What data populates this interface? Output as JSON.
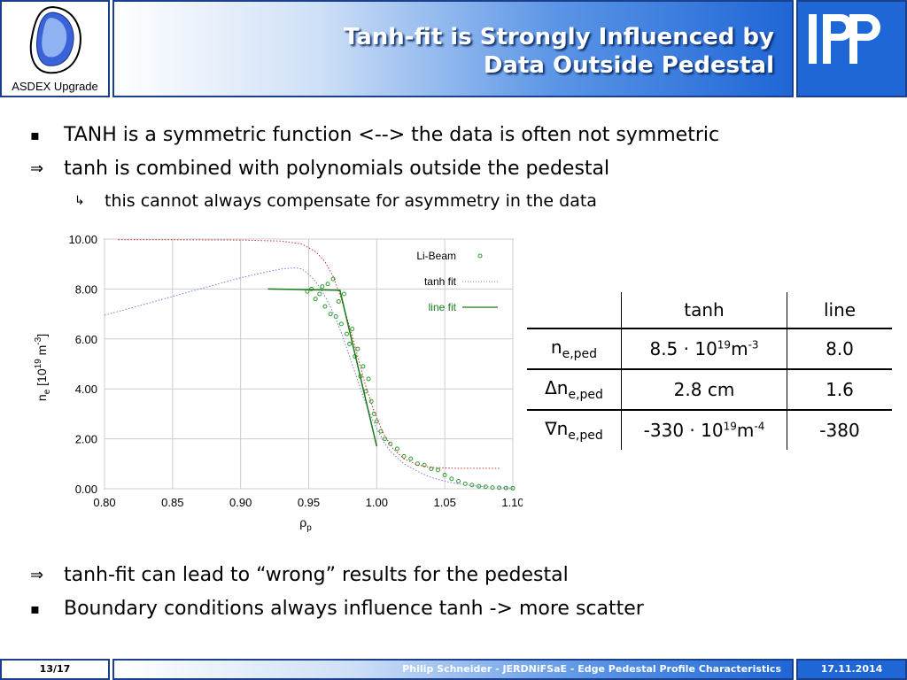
{
  "header": {
    "logo_label": "ASDEX Upgrade",
    "title_line1": "Tanh-fit is Strongly Influenced by",
    "title_line2": "Data Outside Pedestal",
    "institute_logo": "IPP"
  },
  "bullets": [
    {
      "symbol": "▪",
      "text": "TANH is a symmetric function <--> the data is often not symmetric"
    },
    {
      "symbol": "⇒",
      "text": "tanh is combined with polynomials outside the pedestal"
    },
    {
      "symbol": "↳",
      "text": "this cannot always compensate for asymmetry in the data"
    },
    {
      "symbol": "⇒",
      "text": "tanh-fit can lead to “wrong” results for the pedestal"
    },
    {
      "symbol": "▪",
      "text": "Boundary conditions always influence tanh -> more scatter"
    }
  ],
  "table": {
    "header": [
      "",
      "tanh",
      "line"
    ],
    "rows": [
      {
        "label": "n",
        "label_sub": "e,ped",
        "tanh_main": "8.5 · 10",
        "tanh_sup": "19",
        "tanh_unit": "m",
        "tanh_unit_sup": "-3",
        "line": "8.0"
      },
      {
        "label": "Δn",
        "label_sub": "e,ped",
        "tanh_main": "2.8 cm",
        "tanh_sup": "",
        "tanh_unit": "",
        "tanh_unit_sup": "",
        "line": "1.6"
      },
      {
        "label": "∇n",
        "label_sub": "e,ped",
        "tanh_main": "-330 · 10",
        "tanh_sup": "19",
        "tanh_unit": "m",
        "tanh_unit_sup": "-4",
        "line": "-380"
      }
    ]
  },
  "footer": {
    "page": "13/17",
    "author_line": "Philip Schneider - JERDNiFSaE - Edge Pedestal Profile Characteristics",
    "date": "17.11.2014"
  },
  "chart_data": {
    "type": "scatter",
    "xlabel": "ρp",
    "ylabel": "ne [10^19 m^-3]",
    "xlim": [
      0.8,
      1.1
    ],
    "ylim": [
      0.0,
      10.0
    ],
    "x_ticks": [
      "0.80",
      "0.85",
      "0.90",
      "0.95",
      "1.00",
      "1.05",
      "1.10"
    ],
    "y_ticks": [
      "0.00",
      "2.00",
      "4.00",
      "6.00",
      "8.00",
      "10.00"
    ],
    "legend_position": "top-right",
    "series": [
      {
        "name": "Li-Beam",
        "style": "points",
        "color": "#2e9b2e",
        "x": [
          0.949,
          0.952,
          0.955,
          0.958,
          0.96,
          0.962,
          0.964,
          0.966,
          0.968,
          0.97,
          0.972,
          0.974,
          0.976,
          0.978,
          0.98,
          0.982,
          0.984,
          0.986,
          0.988,
          0.99,
          0.992,
          0.994,
          0.996,
          0.998,
          1.0,
          1.003,
          1.006,
          1.01,
          1.015,
          1.02,
          1.025,
          1.03,
          1.035,
          1.04,
          1.045,
          1.05,
          1.055,
          1.06,
          1.065,
          1.07,
          1.075,
          1.08,
          1.085,
          1.09,
          1.095,
          1.1
        ],
        "y": [
          7.9,
          8.0,
          7.6,
          7.8,
          8.1,
          7.3,
          8.2,
          7.0,
          8.4,
          6.9,
          7.5,
          6.6,
          7.8,
          6.2,
          5.8,
          6.4,
          5.3,
          5.6,
          4.5,
          4.9,
          3.9,
          4.4,
          3.5,
          3.0,
          2.7,
          2.3,
          2.0,
          1.8,
          1.6,
          1.3,
          1.2,
          1.0,
          0.95,
          0.8,
          0.75,
          0.55,
          0.4,
          0.3,
          0.2,
          0.15,
          0.1,
          0.08,
          0.05,
          0.04,
          0.03,
          0.02
        ]
      },
      {
        "name": "tanh fit",
        "style": "dotted",
        "color": "#6d7fe0",
        "x": [
          0.8,
          0.82,
          0.84,
          0.86,
          0.88,
          0.9,
          0.92,
          0.93,
          0.94,
          0.945,
          0.95,
          0.955,
          0.96,
          0.965,
          0.97,
          0.975,
          0.98,
          0.985,
          0.99,
          0.995,
          1.0,
          1.005,
          1.01,
          1.02,
          1.03,
          1.04,
          1.05,
          1.06,
          1.07,
          1.08,
          1.09,
          1.1
        ],
        "y": [
          6.95,
          7.25,
          7.55,
          7.85,
          8.15,
          8.45,
          8.7,
          8.8,
          8.85,
          8.8,
          8.6,
          8.3,
          7.9,
          7.4,
          6.8,
          6.1,
          5.3,
          4.5,
          3.7,
          3.0,
          2.4,
          1.9,
          1.5,
          1.0,
          0.7,
          0.45,
          0.3,
          0.2,
          0.12,
          0.08,
          0.05,
          0.03
        ]
      },
      {
        "name": "",
        "style": "dotted",
        "color": "#c03030",
        "x": [
          0.81,
          0.85,
          0.9,
          0.93,
          0.945,
          0.955,
          0.962,
          0.968,
          0.974,
          0.98,
          0.986,
          0.992,
          0.998,
          1.005,
          1.012,
          1.02,
          1.03,
          1.04,
          1.06,
          1.09
        ],
        "y": [
          9.97,
          9.97,
          9.96,
          9.92,
          9.8,
          9.5,
          9.1,
          8.5,
          7.6,
          6.5,
          5.3,
          4.1,
          3.1,
          2.2,
          1.6,
          1.2,
          0.95,
          0.85,
          0.82,
          0.82
        ]
      },
      {
        "name": "line fit",
        "style": "solid",
        "color": "#1a7a1a",
        "x": [
          0.92,
          0.972,
          0.973,
          1.0
        ],
        "y": [
          8.0,
          7.95,
          7.95,
          1.7
        ]
      }
    ]
  }
}
